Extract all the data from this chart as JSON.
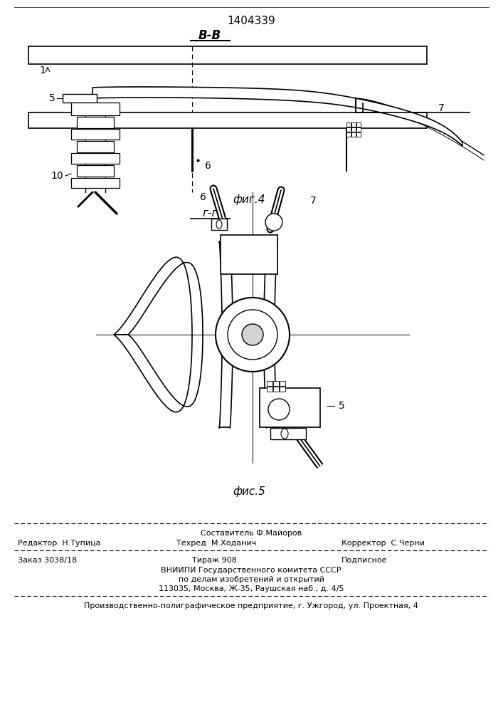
{
  "patent_number": "1404339",
  "bg_color": "#ffffff",
  "line_color": "#000000",
  "fig4_label": "фиг.4",
  "fig5_label": "фис.5",
  "section_bb": "В-В",
  "section_gg": "г-г",
  "label1": "1",
  "label5": "5",
  "label6": "6",
  "label7": "7",
  "label10": "10",
  "footer_line1": "Составитель Ф.Майоров",
  "footer_editor": "Редактор  Н.Тупица",
  "footer_tech": "Техред  М.Ходанич",
  "footer_corrector": "Корректор  С.Черни",
  "footer_order": "Заказ 3038/18",
  "footer_print": "Тираж 908",
  "footer_sub": "Подписное",
  "footer_org1": "ВНИИПИ Государственного комитета СССР",
  "footer_org2": "по делам изобретений и открытий",
  "footer_org3": "113035, Москва, Ж-35, Раушская наб., д. 4/5",
  "footer_prod": "Производственно-полиграфическое предприятие, г. Ужгород, ул. Проектная, 4"
}
